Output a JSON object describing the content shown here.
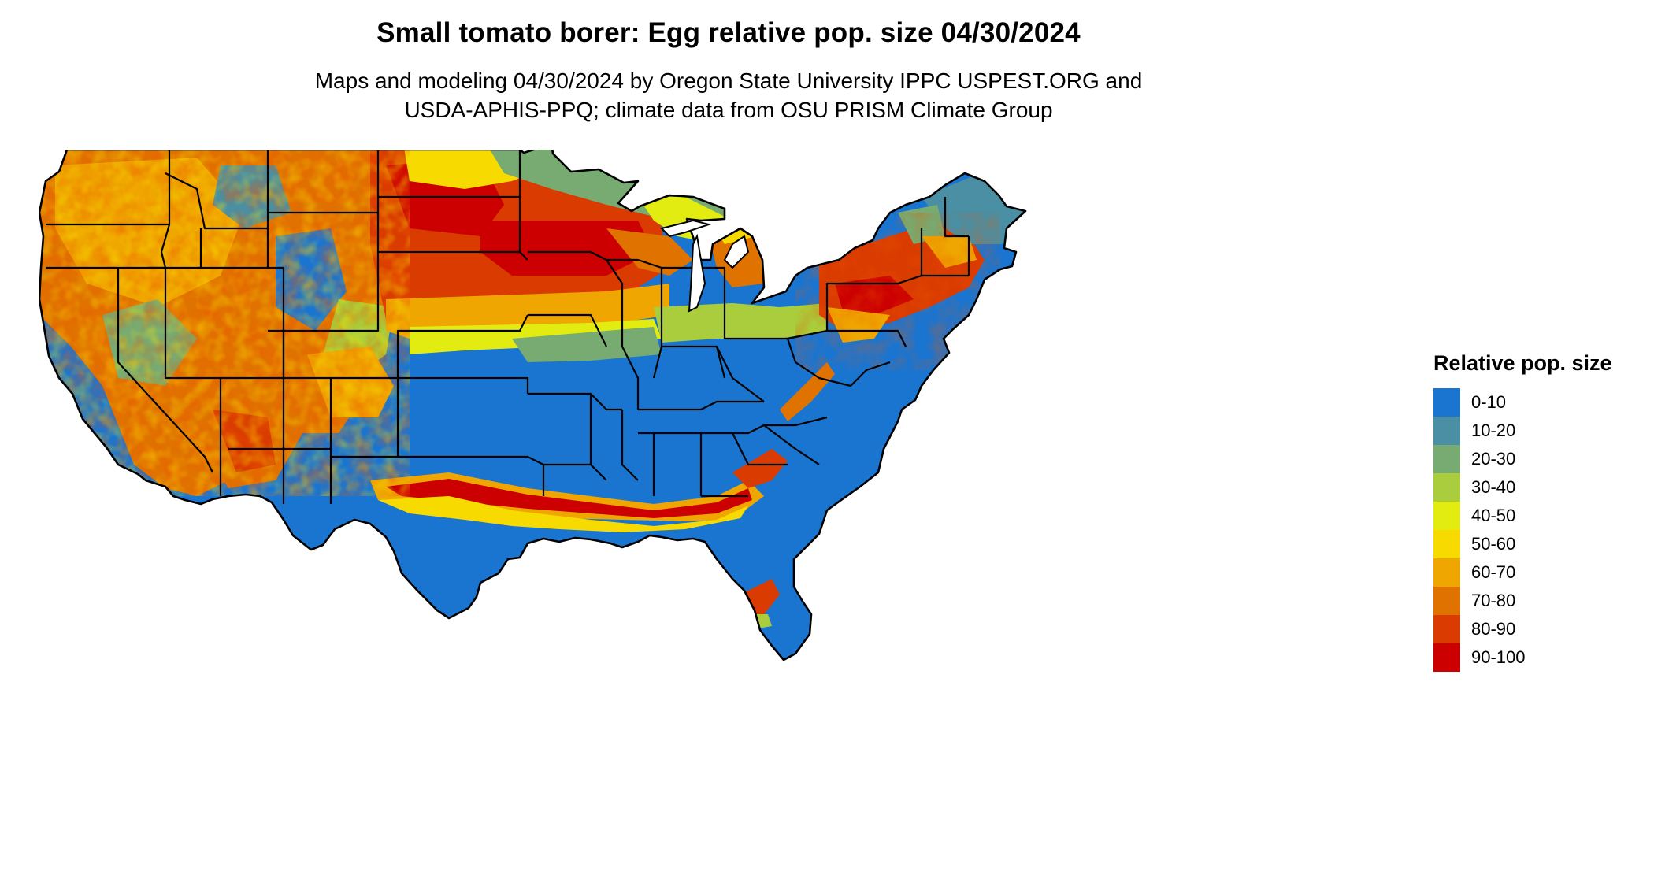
{
  "header": {
    "title": "Small tomato borer: Egg relative pop. size 04/30/2024",
    "subtitle_line1": "Maps and modeling 04/30/2024 by Oregon State University IPPC USPEST.ORG and",
    "subtitle_line2": "USDA-APHIS-PPQ; climate data from OSU PRISM Climate Group"
  },
  "legend": {
    "title": "Relative pop. size",
    "items": [
      {
        "label": "0-10",
        "color": "#1a75d1"
      },
      {
        "label": "10-20",
        "color": "#4a8fa3"
      },
      {
        "label": "20-30",
        "color": "#77ab72"
      },
      {
        "label": "30-40",
        "color": "#a9cd3c"
      },
      {
        "label": "40-50",
        "color": "#e3ec10"
      },
      {
        "label": "50-60",
        "color": "#f7db00"
      },
      {
        "label": "60-70",
        "color": "#efa600"
      },
      {
        "label": "70-80",
        "color": "#e07300"
      },
      {
        "label": "80-90",
        "color": "#d93b00"
      },
      {
        "label": "90-100",
        "color": "#cc0000"
      }
    ]
  },
  "map": {
    "region": "Contiguous United States",
    "variable": "Egg relative pop. size",
    "date": "04/30/2024",
    "boundaries": "state outlines",
    "base_class": "0-10",
    "zones": [
      {
        "area": "Southeast, Southern Plains, Midwest corn belt, Mid-Atlantic",
        "class": "0-10"
      },
      {
        "area": "Gulf coast band (Texas to Georgia/Carolinas)",
        "class": "50-100"
      },
      {
        "area": "Northern Plains (Dakotas, Nebraska) and Montana",
        "class": "60-100"
      },
      {
        "area": "Upper Michigan / Wisconsin / Minnesota north",
        "class": "20-40"
      },
      {
        "area": "New York / Pennsylvania / southern New England",
        "class": "70-100"
      },
      {
        "area": "Maine and northern New England",
        "class": "10-20"
      },
      {
        "area": "Interior West mountains",
        "class": "mixed 0-100"
      },
      {
        "area": "Southern Florida",
        "class": "40-90"
      }
    ]
  }
}
